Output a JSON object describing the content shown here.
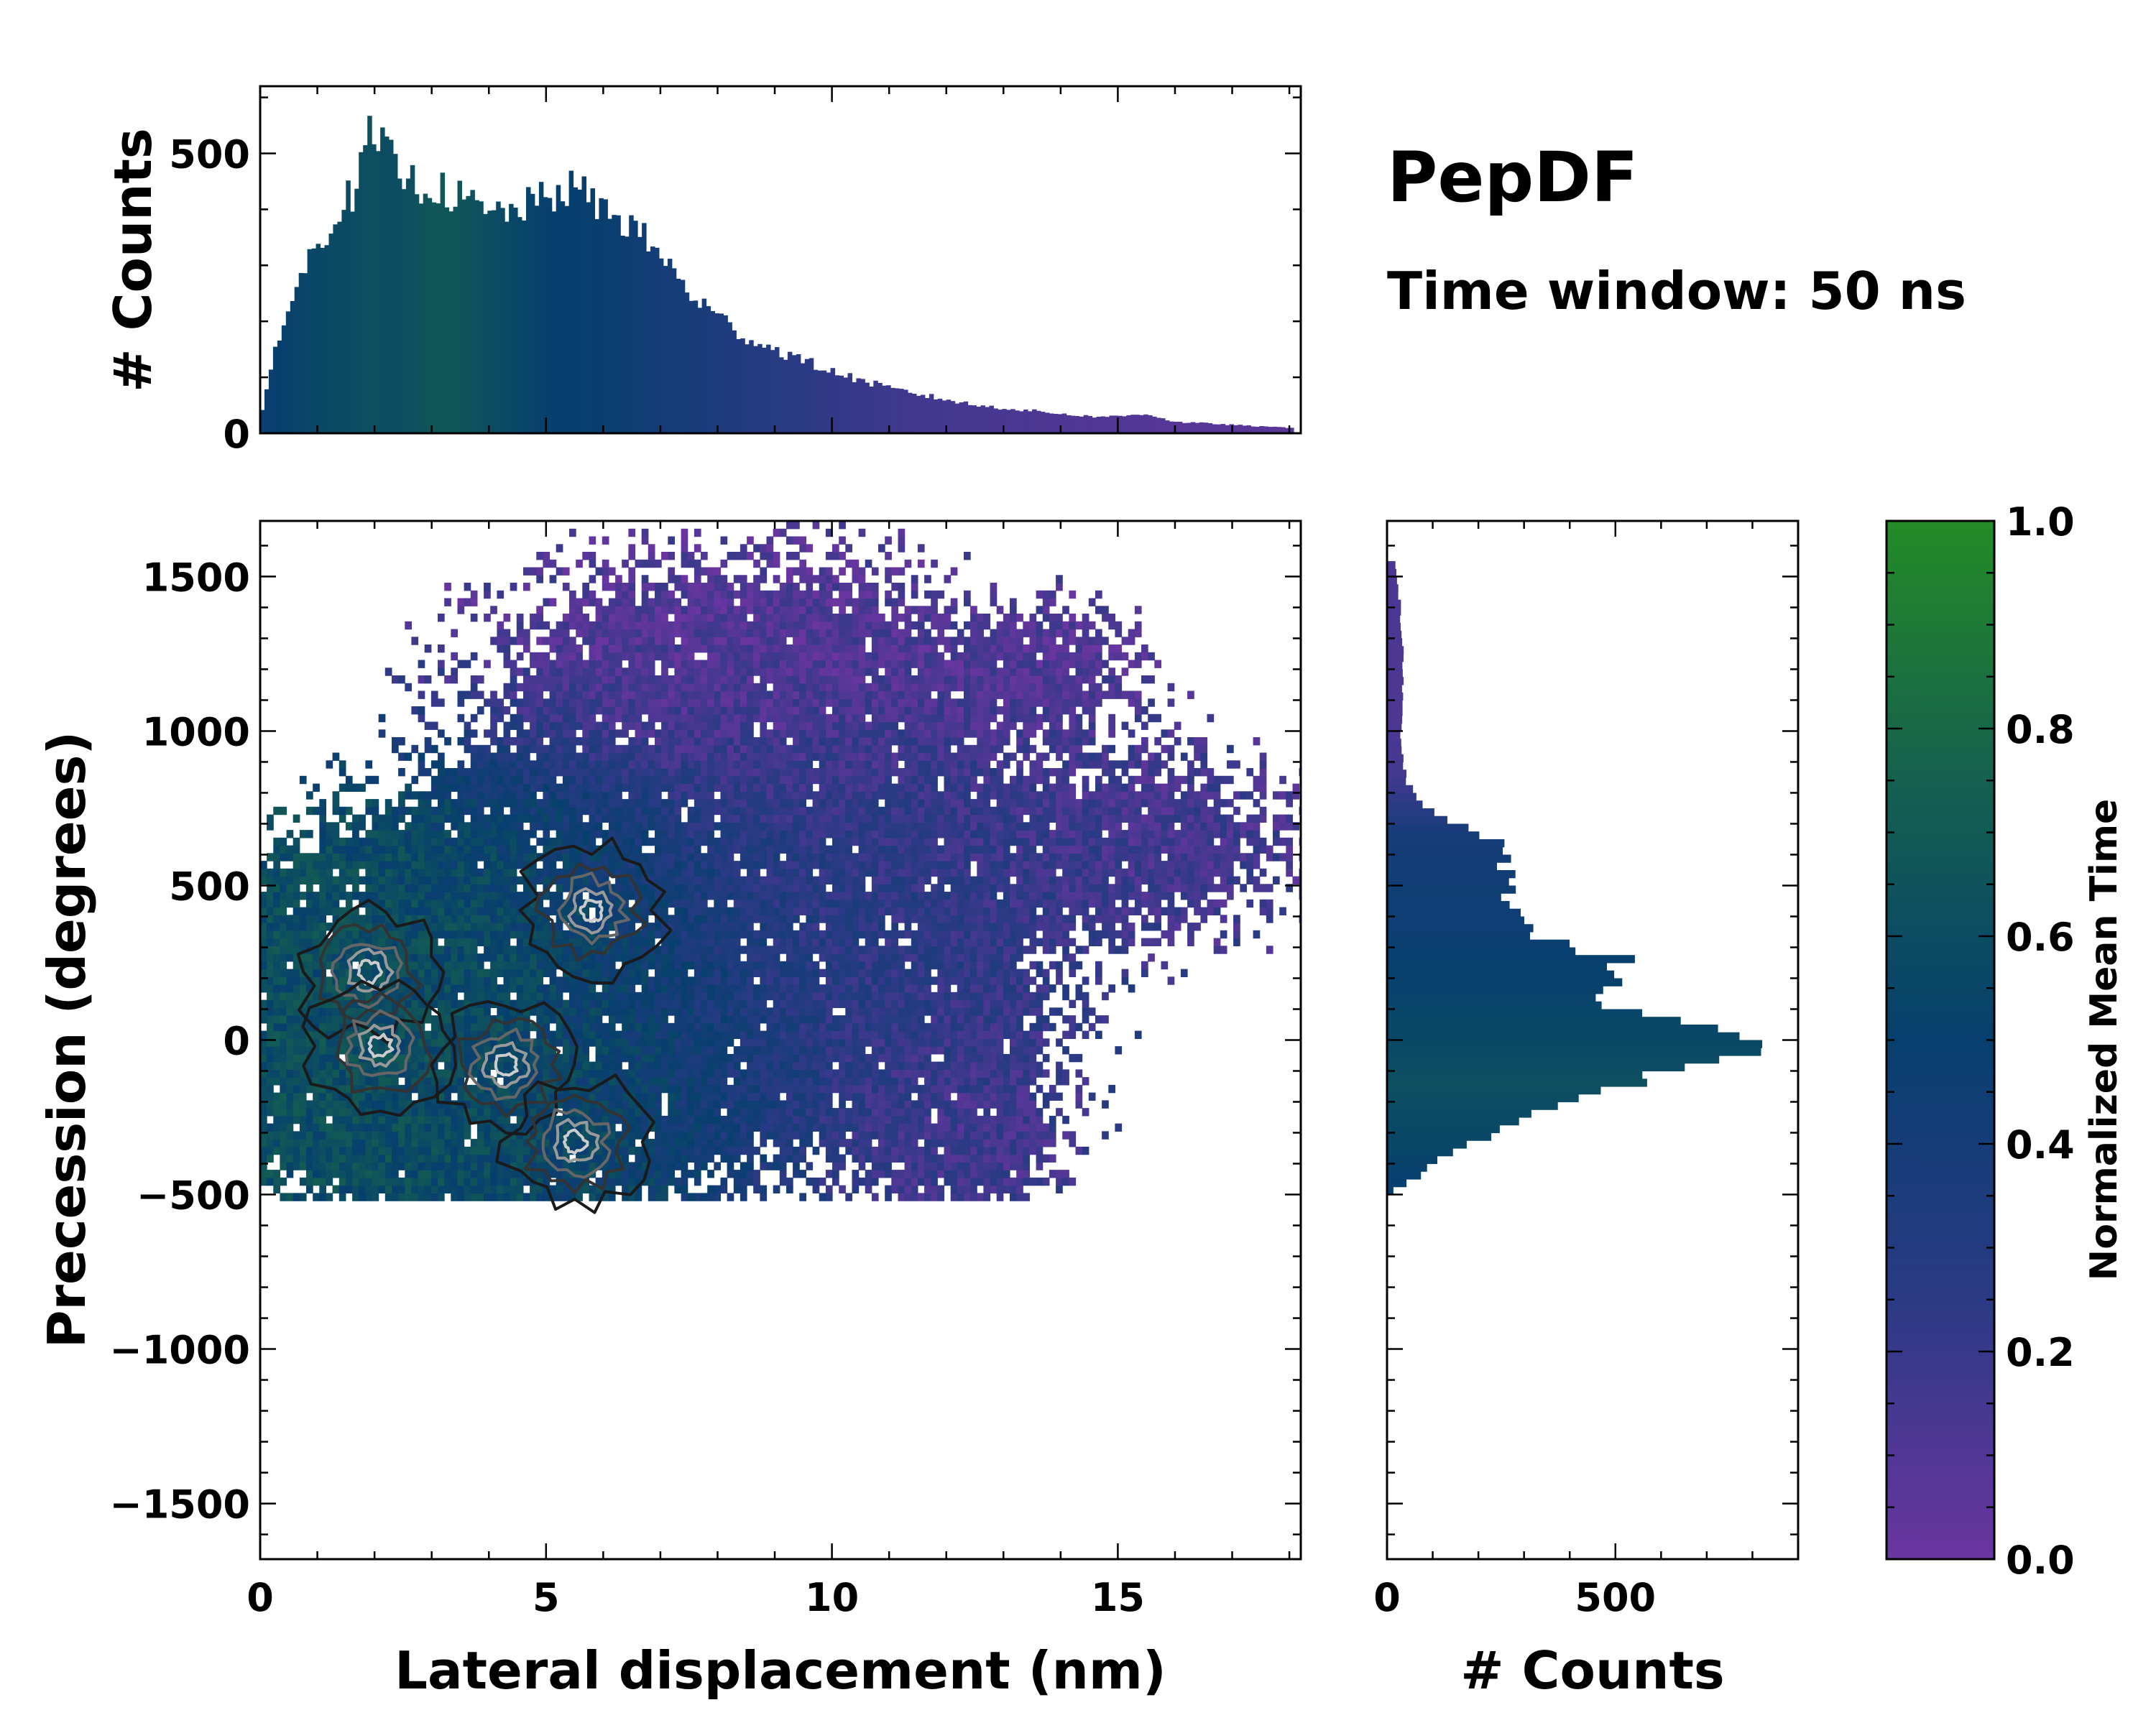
{
  "chart_data": {
    "type": "joint_histogram_2d",
    "title": "PepDF",
    "subtitle": "Time window: 50 ns",
    "colormap": {
      "label": "Normalized Mean Time",
      "range": [
        0.0,
        1.0
      ],
      "ticks": [
        "0.0",
        "0.2",
        "0.4",
        "0.6",
        "0.8",
        "1.0"
      ],
      "colors": [
        "#6a35a0",
        "#2b3a85",
        "#073f6e",
        "#15604f",
        "#238b26"
      ]
    },
    "main": {
      "xlabel": "Lateral displacement (nm)",
      "ylabel": "Precession (degrees)",
      "xlim": [
        0,
        18.2
      ],
      "ylim": [
        -1680,
        1680
      ],
      "xticks": [
        0,
        5,
        10,
        15
      ],
      "yticks": [
        -1500,
        -1000,
        -500,
        0,
        500,
        1000,
        1500
      ],
      "xtick_labels": [
        "0",
        "5",
        "10",
        "15"
      ],
      "ytick_labels": [
        "−1500",
        "−1000",
        "−500",
        "0",
        "500",
        "1000",
        "1500"
      ],
      "blobs": [
        {
          "x": 2.2,
          "y": 50,
          "sx": 1.9,
          "sy": 300,
          "w": 1.0,
          "t": 0.62
        },
        {
          "x": 5.0,
          "y": 150,
          "sx": 2.1,
          "sy": 380,
          "w": 0.85,
          "t": 0.55
        },
        {
          "x": 9.5,
          "y": 350,
          "sx": 2.5,
          "sy": 420,
          "w": 0.55,
          "t": 0.25
        },
        {
          "x": 8.2,
          "y": 1150,
          "sx": 2.6,
          "sy": 260,
          "w": 0.42,
          "t": 0.08
        },
        {
          "x": 15.5,
          "y": 620,
          "sx": 1.8,
          "sy": 200,
          "w": 0.32,
          "t": 0.15
        },
        {
          "x": 12.2,
          "y": -300,
          "sx": 1.2,
          "sy": 260,
          "w": 0.3,
          "t": 0.15
        },
        {
          "x": 13.8,
          "y": 1200,
          "sx": 1.2,
          "sy": 150,
          "w": 0.22,
          "t": 0.1
        }
      ],
      "contour_peaks": [
        {
          "x": 1.9,
          "y": 220
        },
        {
          "x": 2.1,
          "y": -20
        },
        {
          "x": 4.3,
          "y": -80
        },
        {
          "x": 5.8,
          "y": 420
        },
        {
          "x": 5.5,
          "y": -330
        }
      ]
    },
    "top_hist": {
      "ylabel": "# Counts",
      "ylim": [
        0,
        620
      ],
      "yticks": [
        0,
        500
      ],
      "ytick_labels": [
        "0",
        "500"
      ],
      "bin_width_nm": 0.075,
      "x_points": [
        0,
        0.3,
        0.8,
        1.3,
        1.7,
        1.9,
        2.2,
        2.6,
        3.0,
        3.5,
        4.0,
        4.5,
        5.0,
        5.5,
        6.0,
        6.5,
        7.0,
        7.5,
        8.0,
        8.5,
        9.0,
        9.5,
        10.0,
        10.5,
        11.0,
        11.5,
        12.0,
        12.5,
        13.0,
        13.5,
        14.0,
        14.5,
        15.0,
        15.5,
        16.0,
        16.5,
        17.0,
        17.5,
        18.0
      ],
      "count_points": [
        20,
        170,
        300,
        390,
        440,
        530,
        500,
        450,
        440,
        420,
        390,
        400,
        420,
        440,
        400,
        370,
        320,
        250,
        210,
        170,
        150,
        130,
        110,
        95,
        80,
        70,
        60,
        50,
        45,
        40,
        35,
        30,
        30,
        35,
        20,
        18,
        15,
        12,
        10
      ],
      "time_points": [
        0.45,
        0.5,
        0.55,
        0.58,
        0.6,
        0.62,
        0.6,
        0.62,
        0.68,
        0.66,
        0.6,
        0.55,
        0.5,
        0.5,
        0.48,
        0.45,
        0.4,
        0.38,
        0.35,
        0.3,
        0.28,
        0.25,
        0.22,
        0.2,
        0.18,
        0.16,
        0.15,
        0.14,
        0.13,
        0.12,
        0.11,
        0.1,
        0.1,
        0.09,
        0.08,
        0.08,
        0.07,
        0.07,
        0.06
      ]
    },
    "right_hist": {
      "xlabel": "# Counts",
      "xlim": [
        0,
        900
      ],
      "xticks": [
        0,
        500
      ],
      "xtick_labels": [
        "0",
        "500"
      ],
      "bin_width_deg": 25,
      "y_points": [
        -500,
        -450,
        -350,
        -250,
        -150,
        -50,
        0,
        50,
        150,
        250,
        350,
        450,
        550,
        650,
        750,
        850,
        1000,
        1200,
        1400,
        1500
      ],
      "count_points": [
        0,
        60,
        150,
        310,
        500,
        760,
        780,
        640,
        440,
        530,
        300,
        270,
        260,
        240,
        80,
        40,
        30,
        35,
        30,
        20
      ],
      "time_points": [
        0.5,
        0.5,
        0.55,
        0.58,
        0.62,
        0.58,
        0.56,
        0.55,
        0.52,
        0.5,
        0.45,
        0.45,
        0.42,
        0.4,
        0.25,
        0.15,
        0.12,
        0.12,
        0.12,
        0.12
      ]
    }
  }
}
